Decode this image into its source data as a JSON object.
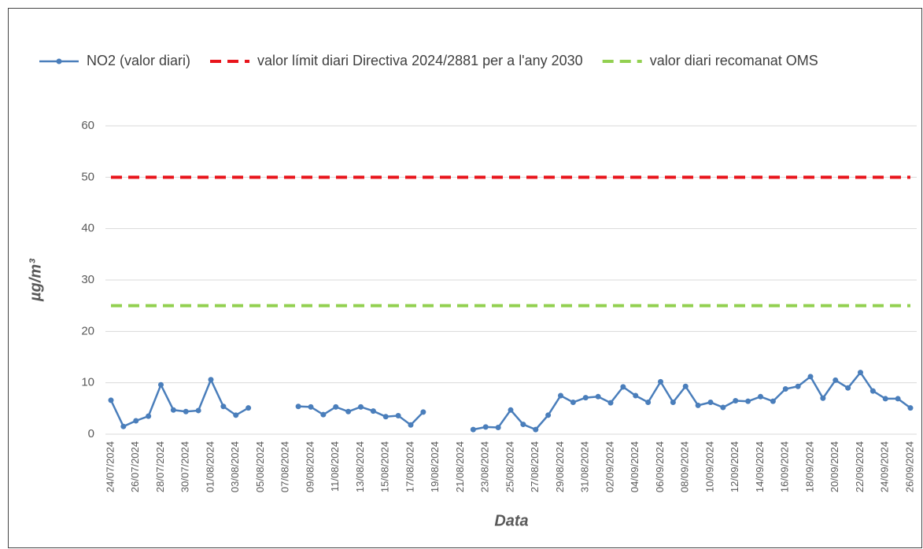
{
  "chart_data": {
    "type": "line",
    "x_label": "Data",
    "y_label": "µg/m³",
    "categories": [
      "24/07/2024",
      null,
      "26/07/2024",
      null,
      "28/07/2024",
      null,
      "30/07/2024",
      null,
      "01/08/2024",
      null,
      "03/08/2024",
      null,
      "05/08/2024",
      null,
      "07/08/2024",
      null,
      "09/08/2024",
      null,
      "11/08/2024",
      null,
      "13/08/2024",
      null,
      "15/08/2024",
      null,
      "17/08/2024",
      null,
      "19/08/2024",
      null,
      "21/08/2024",
      null,
      "23/08/2024",
      null,
      "25/08/2024",
      null,
      "27/08/2024",
      null,
      "29/08/2024",
      null,
      "31/08/2024",
      null,
      "02/09/2024",
      null,
      "04/09/2024",
      null,
      "06/09/2024",
      null,
      "08/09/2024",
      null,
      "10/09/2024",
      null,
      "12/09/2024",
      null,
      "14/09/2024",
      null,
      "16/09/2024",
      null,
      "18/09/2024",
      null,
      "20/09/2024",
      null,
      "22/09/2024",
      null,
      "24/09/2024",
      null,
      "26/09/2024"
    ],
    "series": [
      {
        "name": "NO2 (valor diari)",
        "color": "#4a7ebb",
        "values": [
          6.6,
          1.5,
          2.6,
          3.5,
          9.6,
          4.7,
          4.4,
          4.6,
          10.6,
          5.4,
          3.7,
          5.1,
          null,
          null,
          null,
          5.4,
          5.3,
          3.8,
          5.3,
          4.4,
          5.3,
          4.5,
          3.4,
          3.6,
          1.8,
          4.3,
          null,
          null,
          null,
          0.9,
          1.4,
          1.3,
          4.7,
          1.9,
          0.9,
          3.7,
          7.5,
          6.2,
          7.1,
          7.3,
          6.1,
          9.2,
          7.5,
          6.2,
          10.2,
          6.2,
          9.3,
          5.6,
          6.2,
          5.2,
          6.5,
          6.4,
          7.3,
          6.4,
          8.8,
          9.3,
          11.2,
          7.0,
          10.5,
          9.0,
          12.0,
          8.4,
          6.9,
          6.9,
          5.1
        ]
      }
    ],
    "reference_lines": [
      {
        "name": "valor límit diari Directiva 2024/2881 per a l'any 2030",
        "value": 50,
        "color": "#e8141b",
        "dashed": true
      },
      {
        "name": "valor diari recomanat OMS",
        "value": 25,
        "color": "#92d050",
        "dashed": true
      }
    ],
    "ylim": [
      0,
      60
    ],
    "yticks": [
      0,
      10,
      20,
      30,
      40,
      50,
      60
    ],
    "grid": true,
    "legend": "top"
  }
}
